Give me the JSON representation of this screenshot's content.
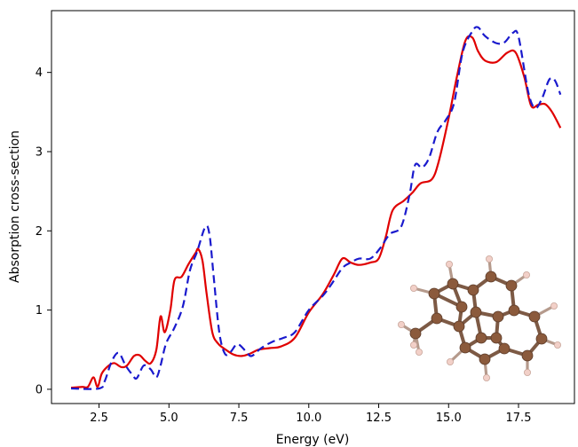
{
  "chart_data": {
    "type": "line",
    "title": "",
    "xlabel": "Energy (eV)",
    "ylabel": "Absorption cross-section",
    "xlim": [
      0.8,
      19.5
    ],
    "ylim": [
      -0.18,
      4.78
    ],
    "xticks": [
      2.5,
      5.0,
      7.5,
      10.0,
      12.5,
      15.0,
      17.5
    ],
    "xtick_labels": [
      "2.5",
      "5.0",
      "7.5",
      "10.0",
      "12.5",
      "15.0",
      "17.5"
    ],
    "yticks": [
      0,
      1,
      2,
      3,
      4
    ],
    "ytick_labels": [
      "0",
      "1",
      "2",
      "3",
      "4"
    ],
    "grid": false,
    "legend": "none",
    "series": [
      {
        "color": "#e00000",
        "style": "solid",
        "points": [
          [
            1.5,
            0.02
          ],
          [
            1.9,
            0.03
          ],
          [
            2.1,
            0.03
          ],
          [
            2.3,
            0.15
          ],
          [
            2.45,
            0.03
          ],
          [
            2.6,
            0.2
          ],
          [
            2.85,
            0.3
          ],
          [
            3.05,
            0.33
          ],
          [
            3.3,
            0.28
          ],
          [
            3.5,
            0.3
          ],
          [
            3.75,
            0.42
          ],
          [
            3.95,
            0.43
          ],
          [
            4.15,
            0.36
          ],
          [
            4.35,
            0.33
          ],
          [
            4.55,
            0.5
          ],
          [
            4.7,
            0.92
          ],
          [
            4.85,
            0.72
          ],
          [
            5.05,
            1.0
          ],
          [
            5.2,
            1.38
          ],
          [
            5.45,
            1.42
          ],
          [
            5.7,
            1.58
          ],
          [
            5.95,
            1.72
          ],
          [
            6.05,
            1.77
          ],
          [
            6.2,
            1.62
          ],
          [
            6.35,
            1.2
          ],
          [
            6.55,
            0.72
          ],
          [
            6.75,
            0.58
          ],
          [
            6.95,
            0.52
          ],
          [
            7.3,
            0.44
          ],
          [
            7.6,
            0.42
          ],
          [
            7.9,
            0.45
          ],
          [
            8.2,
            0.5
          ],
          [
            8.6,
            0.52
          ],
          [
            9.0,
            0.54
          ],
          [
            9.5,
            0.65
          ],
          [
            10.0,
            0.97
          ],
          [
            10.5,
            1.2
          ],
          [
            10.9,
            1.45
          ],
          [
            11.2,
            1.65
          ],
          [
            11.5,
            1.6
          ],
          [
            11.8,
            1.57
          ],
          [
            12.2,
            1.6
          ],
          [
            12.5,
            1.65
          ],
          [
            12.75,
            1.92
          ],
          [
            13.0,
            2.26
          ],
          [
            13.4,
            2.38
          ],
          [
            13.7,
            2.48
          ],
          [
            14.0,
            2.6
          ],
          [
            14.4,
            2.65
          ],
          [
            14.65,
            2.88
          ],
          [
            15.0,
            3.42
          ],
          [
            15.3,
            3.95
          ],
          [
            15.6,
            4.4
          ],
          [
            15.85,
            4.44
          ],
          [
            16.05,
            4.27
          ],
          [
            16.3,
            4.15
          ],
          [
            16.7,
            4.13
          ],
          [
            17.1,
            4.25
          ],
          [
            17.4,
            4.25
          ],
          [
            17.7,
            3.95
          ],
          [
            17.95,
            3.58
          ],
          [
            18.2,
            3.59
          ],
          [
            18.45,
            3.6
          ],
          [
            18.7,
            3.5
          ],
          [
            19.0,
            3.3
          ]
        ]
      },
      {
        "color": "#1a1acd",
        "style": "dashed",
        "points": [
          [
            1.5,
            0.01
          ],
          [
            2.5,
            0.01
          ],
          [
            2.7,
            0.1
          ],
          [
            2.95,
            0.35
          ],
          [
            3.2,
            0.46
          ],
          [
            3.45,
            0.3
          ],
          [
            3.7,
            0.18
          ],
          [
            3.85,
            0.14
          ],
          [
            4.1,
            0.3
          ],
          [
            4.35,
            0.25
          ],
          [
            4.55,
            0.15
          ],
          [
            4.7,
            0.3
          ],
          [
            4.9,
            0.58
          ],
          [
            5.2,
            0.78
          ],
          [
            5.5,
            1.05
          ],
          [
            5.75,
            1.5
          ],
          [
            6.0,
            1.73
          ],
          [
            6.3,
            2.05
          ],
          [
            6.45,
            1.95
          ],
          [
            6.6,
            1.42
          ],
          [
            6.8,
            0.72
          ],
          [
            7.0,
            0.45
          ],
          [
            7.2,
            0.47
          ],
          [
            7.45,
            0.57
          ],
          [
            7.75,
            0.48
          ],
          [
            7.95,
            0.42
          ],
          [
            8.3,
            0.52
          ],
          [
            8.7,
            0.6
          ],
          [
            9.1,
            0.65
          ],
          [
            9.5,
            0.72
          ],
          [
            10.0,
            1.0
          ],
          [
            10.5,
            1.18
          ],
          [
            10.8,
            1.32
          ],
          [
            11.2,
            1.53
          ],
          [
            11.5,
            1.6
          ],
          [
            11.8,
            1.65
          ],
          [
            12.2,
            1.65
          ],
          [
            12.55,
            1.78
          ],
          [
            12.9,
            1.96
          ],
          [
            13.3,
            2.05
          ],
          [
            13.6,
            2.45
          ],
          [
            13.8,
            2.83
          ],
          [
            14.05,
            2.8
          ],
          [
            14.3,
            2.92
          ],
          [
            14.6,
            3.25
          ],
          [
            14.9,
            3.4
          ],
          [
            15.2,
            3.62
          ],
          [
            15.5,
            4.25
          ],
          [
            15.85,
            4.52
          ],
          [
            16.05,
            4.57
          ],
          [
            16.3,
            4.46
          ],
          [
            16.7,
            4.37
          ],
          [
            17.0,
            4.38
          ],
          [
            17.3,
            4.5
          ],
          [
            17.5,
            4.45
          ],
          [
            17.85,
            3.75
          ],
          [
            18.1,
            3.55
          ],
          [
            18.35,
            3.68
          ],
          [
            18.6,
            3.91
          ],
          [
            18.8,
            3.9
          ],
          [
            19.0,
            3.72
          ]
        ]
      }
    ]
  },
  "molecule_inset": {
    "name": "pyrene-like molecule",
    "atom_color": "#8b5a3c",
    "hydrogen_color": "#f2d0c8",
    "bond_color": "#7d5a45"
  }
}
